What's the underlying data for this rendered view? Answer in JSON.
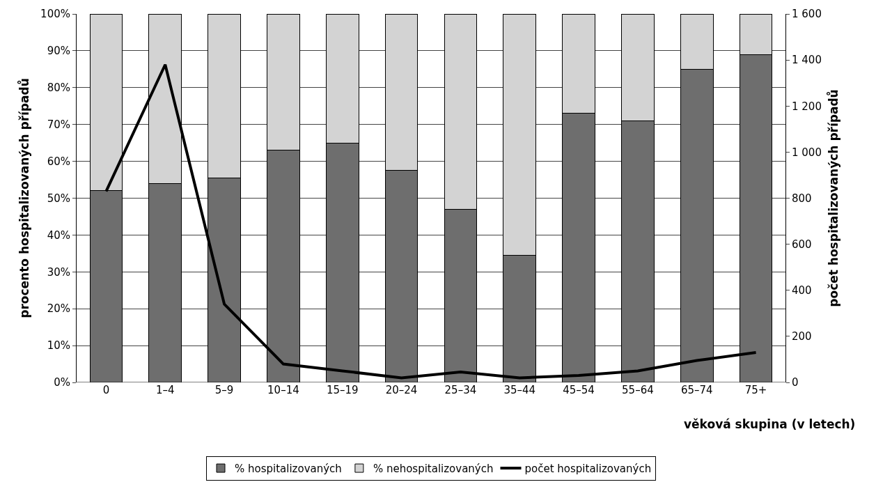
{
  "chart_data": {
    "type": "bar",
    "stacked": true,
    "xlabel": "věková skupina (v letech)",
    "ylabel": "procento hospitalizovaných případů",
    "y2label": "počet hospitalizovaných případů",
    "categories": [
      "0",
      "1–4",
      "5–9",
      "10–14",
      "15–19",
      "20–24",
      "25–34",
      "35–44",
      "45–54",
      "55–64",
      "65–74",
      "75+"
    ],
    "series": [
      {
        "name": "% hospitalizovaných",
        "color": "#6e6e6e",
        "values": [
          52,
          54,
          55.5,
          63,
          65,
          57.5,
          47,
          34.5,
          73,
          71,
          85,
          89
        ]
      },
      {
        "name": "% nehospitalizovaných",
        "color": "#d3d3d3",
        "values": [
          48,
          46,
          44.5,
          37,
          35,
          42.5,
          53,
          65.5,
          27,
          29,
          15,
          11
        ]
      },
      {
        "name": "počet hospitalizovaných",
        "type": "line",
        "axis": "y2",
        "color": "#000000",
        "values": [
          830,
          1380,
          340,
          80,
          50,
          20,
          45,
          20,
          30,
          50,
          95,
          130
        ]
      }
    ],
    "ylim": [
      0,
      100
    ],
    "yticks": [
      {
        "value": 0,
        "label": "0%"
      },
      {
        "value": 10,
        "label": "10%"
      },
      {
        "value": 20,
        "label": "20%"
      },
      {
        "value": 30,
        "label": "30%"
      },
      {
        "value": 40,
        "label": "40%"
      },
      {
        "value": 50,
        "label": "50%"
      },
      {
        "value": 60,
        "label": "60%"
      },
      {
        "value": 70,
        "label": "70%"
      },
      {
        "value": 80,
        "label": "80%"
      },
      {
        "value": 90,
        "label": "90%"
      },
      {
        "value": 100,
        "label": "100%"
      }
    ],
    "y2lim": [
      0,
      1600
    ],
    "y2ticks": [
      0,
      200,
      400,
      600,
      800,
      {
        "value": 1000,
        "label": "1 000"
      },
      {
        "value": 1200,
        "label": "1 200"
      },
      {
        "value": 1400,
        "label": "1 400"
      },
      {
        "value": 1600,
        "label": "1 600"
      }
    ],
    "grid": "y",
    "legend": "bottom",
    "marker": "none",
    "line_style": "solid"
  }
}
